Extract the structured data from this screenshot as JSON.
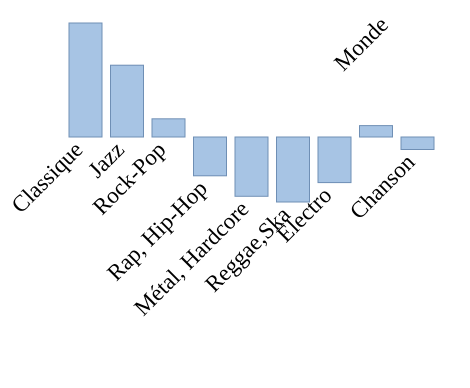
{
  "chart_data": {
    "type": "bar",
    "title": "",
    "xlabel": "",
    "ylabel": "",
    "categories": [
      "Classique",
      "Jazz",
      "Rock-Pop",
      "Rap, Hip-Hop",
      "Métal, Hardcore",
      "Reggae,Ska",
      "Electro",
      "Monde",
      "Chanson"
    ],
    "values": [
      1.0,
      0.63,
      0.16,
      -0.34,
      -0.52,
      -0.57,
      -0.4,
      0.1,
      -0.11
    ],
    "ylim": [
      -0.6,
      1.05
    ],
    "grid": false,
    "legend": "none",
    "colors": {
      "bar_fill": "#a7c4e4",
      "bar_stroke": "#6f8fb5"
    }
  }
}
